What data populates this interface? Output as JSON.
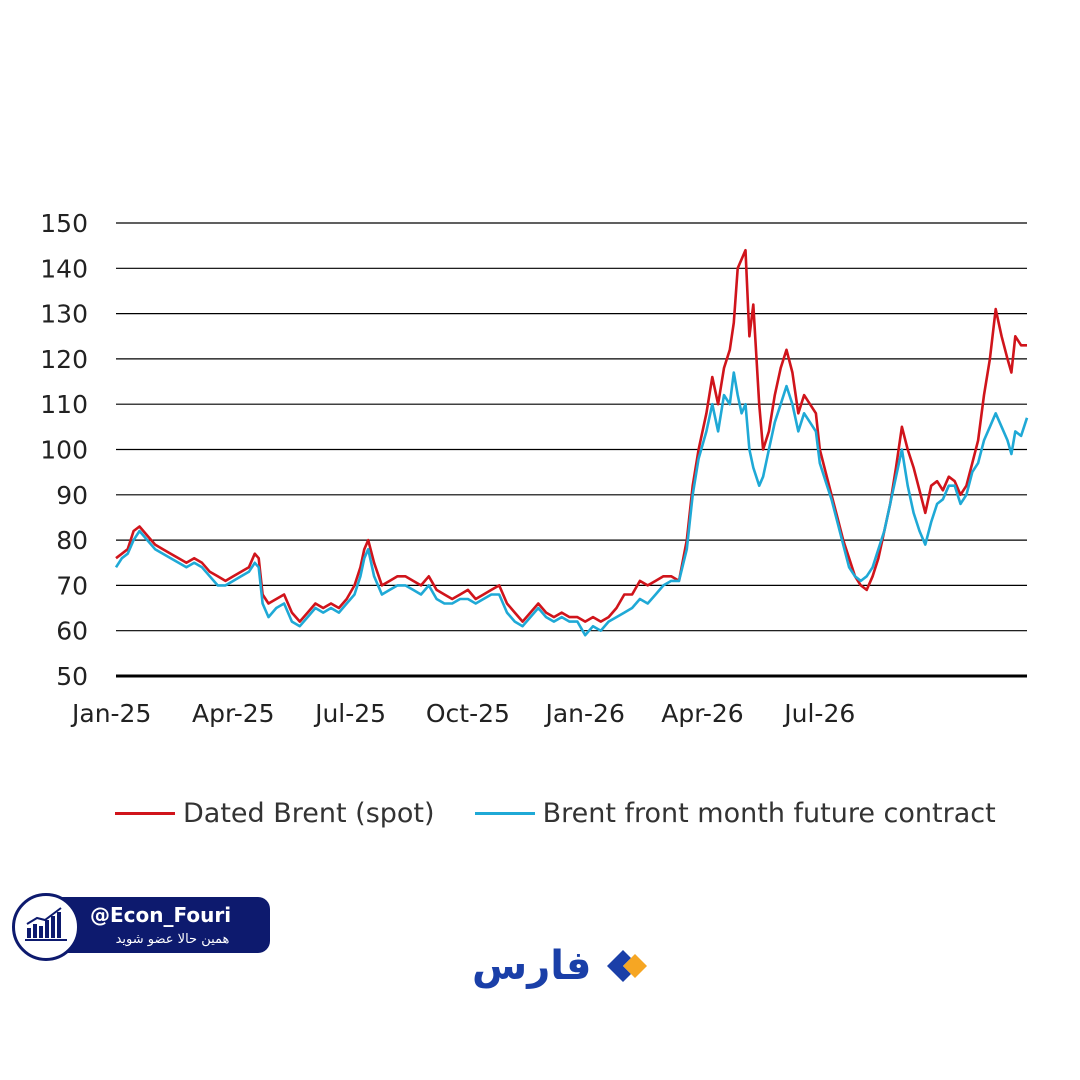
{
  "chart_data": {
    "type": "line",
    "ylim": [
      50,
      150
    ],
    "yticks": [
      50,
      60,
      70,
      80,
      90,
      100,
      110,
      120,
      130,
      140,
      150
    ],
    "xlim": [
      0,
      23.3
    ],
    "xticks": [
      {
        "label": "Jan-25",
        "x": 0
      },
      {
        "label": "Apr-25",
        "x": 3
      },
      {
        "label": "Jul-25",
        "x": 6
      },
      {
        "label": "Oct-25",
        "x": 9
      },
      {
        "label": "Jan-26",
        "x": 12
      },
      {
        "label": "Apr-26",
        "x": 15
      },
      {
        "label": "Jul-26",
        "x": 18
      }
    ],
    "grid": true,
    "legend_position": "bottom",
    "series": [
      {
        "name": "Dated Brent (spot)",
        "color": "#d0141b",
        "points": [
          [
            0.0,
            76
          ],
          [
            0.15,
            77
          ],
          [
            0.3,
            78
          ],
          [
            0.45,
            82
          ],
          [
            0.6,
            83
          ],
          [
            0.8,
            81
          ],
          [
            1.0,
            79
          ],
          [
            1.2,
            78
          ],
          [
            1.4,
            77
          ],
          [
            1.6,
            76
          ],
          [
            1.8,
            75
          ],
          [
            2.0,
            76
          ],
          [
            2.2,
            75
          ],
          [
            2.4,
            73
          ],
          [
            2.6,
            72
          ],
          [
            2.8,
            71
          ],
          [
            3.0,
            72
          ],
          [
            3.2,
            73
          ],
          [
            3.4,
            74
          ],
          [
            3.55,
            77
          ],
          [
            3.65,
            76
          ],
          [
            3.75,
            68
          ],
          [
            3.9,
            66
          ],
          [
            4.1,
            67
          ],
          [
            4.3,
            68
          ],
          [
            4.5,
            64
          ],
          [
            4.7,
            62
          ],
          [
            4.9,
            64
          ],
          [
            5.1,
            66
          ],
          [
            5.3,
            65
          ],
          [
            5.5,
            66
          ],
          [
            5.7,
            65
          ],
          [
            5.9,
            67
          ],
          [
            6.1,
            70
          ],
          [
            6.25,
            74
          ],
          [
            6.35,
            78
          ],
          [
            6.45,
            80
          ],
          [
            6.6,
            75
          ],
          [
            6.8,
            70
          ],
          [
            7.0,
            71
          ],
          [
            7.2,
            72
          ],
          [
            7.4,
            72
          ],
          [
            7.6,
            71
          ],
          [
            7.8,
            70
          ],
          [
            8.0,
            72
          ],
          [
            8.2,
            69
          ],
          [
            8.4,
            68
          ],
          [
            8.6,
            67
          ],
          [
            8.8,
            68
          ],
          [
            9.0,
            69
          ],
          [
            9.2,
            67
          ],
          [
            9.4,
            68
          ],
          [
            9.6,
            69
          ],
          [
            9.8,
            70
          ],
          [
            10.0,
            66
          ],
          [
            10.2,
            64
          ],
          [
            10.4,
            62
          ],
          [
            10.6,
            64
          ],
          [
            10.8,
            66
          ],
          [
            11.0,
            64
          ],
          [
            11.2,
            63
          ],
          [
            11.4,
            64
          ],
          [
            11.6,
            63
          ],
          [
            11.8,
            63
          ],
          [
            12.0,
            62
          ],
          [
            12.2,
            63
          ],
          [
            12.4,
            62
          ],
          [
            12.6,
            63
          ],
          [
            12.8,
            65
          ],
          [
            13.0,
            68
          ],
          [
            13.2,
            68
          ],
          [
            13.4,
            71
          ],
          [
            13.6,
            70
          ],
          [
            13.8,
            71
          ],
          [
            14.0,
            72
          ],
          [
            14.2,
            72
          ],
          [
            14.4,
            71
          ],
          [
            14.6,
            80
          ],
          [
            14.75,
            92
          ],
          [
            14.9,
            100
          ],
          [
            15.1,
            108
          ],
          [
            15.25,
            116
          ],
          [
            15.4,
            110
          ],
          [
            15.55,
            118
          ],
          [
            15.7,
            122
          ],
          [
            15.8,
            128
          ],
          [
            15.9,
            140
          ],
          [
            16.0,
            142
          ],
          [
            16.1,
            144
          ],
          [
            16.2,
            125
          ],
          [
            16.3,
            132
          ],
          [
            16.45,
            110
          ],
          [
            16.55,
            100
          ],
          [
            16.7,
            104
          ],
          [
            16.85,
            112
          ],
          [
            17.0,
            118
          ],
          [
            17.15,
            122
          ],
          [
            17.3,
            117
          ],
          [
            17.45,
            108
          ],
          [
            17.6,
            112
          ],
          [
            17.75,
            110
          ],
          [
            17.9,
            108
          ],
          [
            18.0,
            100
          ],
          [
            18.15,
            95
          ],
          [
            18.3,
            90
          ],
          [
            18.45,
            85
          ],
          [
            18.6,
            80
          ],
          [
            18.75,
            76
          ],
          [
            18.9,
            72
          ],
          [
            19.05,
            70
          ],
          [
            19.2,
            69
          ],
          [
            19.35,
            72
          ],
          [
            19.5,
            76
          ],
          [
            19.65,
            82
          ],
          [
            19.8,
            88
          ],
          [
            19.95,
            96
          ],
          [
            20.1,
            105
          ],
          [
            20.25,
            100
          ],
          [
            20.4,
            96
          ],
          [
            20.55,
            91
          ],
          [
            20.7,
            86
          ],
          [
            20.85,
            92
          ],
          [
            21.0,
            93
          ],
          [
            21.15,
            91
          ],
          [
            21.3,
            94
          ],
          [
            21.45,
            93
          ],
          [
            21.6,
            90
          ],
          [
            21.75,
            92
          ],
          [
            21.9,
            97
          ],
          [
            22.05,
            102
          ],
          [
            22.2,
            112
          ],
          [
            22.35,
            120
          ],
          [
            22.5,
            131
          ],
          [
            22.65,
            125
          ],
          [
            22.8,
            120
          ],
          [
            22.9,
            117
          ],
          [
            23.0,
            125
          ],
          [
            23.15,
            123
          ],
          [
            23.3,
            123
          ]
        ]
      },
      {
        "name": "Brent front month future contract",
        "color": "#1fa9d6",
        "points": [
          [
            0.0,
            74
          ],
          [
            0.15,
            76
          ],
          [
            0.3,
            77
          ],
          [
            0.45,
            80
          ],
          [
            0.6,
            82
          ],
          [
            0.8,
            80
          ],
          [
            1.0,
            78
          ],
          [
            1.2,
            77
          ],
          [
            1.4,
            76
          ],
          [
            1.6,
            75
          ],
          [
            1.8,
            74
          ],
          [
            2.0,
            75
          ],
          [
            2.2,
            74
          ],
          [
            2.4,
            72
          ],
          [
            2.6,
            70
          ],
          [
            2.8,
            70
          ],
          [
            3.0,
            71
          ],
          [
            3.2,
            72
          ],
          [
            3.4,
            73
          ],
          [
            3.55,
            75
          ],
          [
            3.65,
            74
          ],
          [
            3.75,
            66
          ],
          [
            3.9,
            63
          ],
          [
            4.1,
            65
          ],
          [
            4.3,
            66
          ],
          [
            4.5,
            62
          ],
          [
            4.7,
            61
          ],
          [
            4.9,
            63
          ],
          [
            5.1,
            65
          ],
          [
            5.3,
            64
          ],
          [
            5.5,
            65
          ],
          [
            5.7,
            64
          ],
          [
            5.9,
            66
          ],
          [
            6.1,
            68
          ],
          [
            6.25,
            72
          ],
          [
            6.35,
            76
          ],
          [
            6.45,
            78
          ],
          [
            6.6,
            72
          ],
          [
            6.8,
            68
          ],
          [
            7.0,
            69
          ],
          [
            7.2,
            70
          ],
          [
            7.4,
            70
          ],
          [
            7.6,
            69
          ],
          [
            7.8,
            68
          ],
          [
            8.0,
            70
          ],
          [
            8.2,
            67
          ],
          [
            8.4,
            66
          ],
          [
            8.6,
            66
          ],
          [
            8.8,
            67
          ],
          [
            9.0,
            67
          ],
          [
            9.2,
            66
          ],
          [
            9.4,
            67
          ],
          [
            9.6,
            68
          ],
          [
            9.8,
            68
          ],
          [
            10.0,
            64
          ],
          [
            10.2,
            62
          ],
          [
            10.4,
            61
          ],
          [
            10.6,
            63
          ],
          [
            10.8,
            65
          ],
          [
            11.0,
            63
          ],
          [
            11.2,
            62
          ],
          [
            11.4,
            63
          ],
          [
            11.6,
            62
          ],
          [
            11.8,
            62
          ],
          [
            12.0,
            59
          ],
          [
            12.2,
            61
          ],
          [
            12.4,
            60
          ],
          [
            12.6,
            62
          ],
          [
            12.8,
            63
          ],
          [
            13.0,
            64
          ],
          [
            13.2,
            65
          ],
          [
            13.4,
            67
          ],
          [
            13.6,
            66
          ],
          [
            13.8,
            68
          ],
          [
            14.0,
            70
          ],
          [
            14.2,
            71
          ],
          [
            14.4,
            71
          ],
          [
            14.6,
            78
          ],
          [
            14.75,
            90
          ],
          [
            14.9,
            98
          ],
          [
            15.1,
            104
          ],
          [
            15.25,
            110
          ],
          [
            15.4,
            104
          ],
          [
            15.55,
            112
          ],
          [
            15.7,
            110
          ],
          [
            15.8,
            117
          ],
          [
            15.9,
            112
          ],
          [
            16.0,
            108
          ],
          [
            16.1,
            110
          ],
          [
            16.2,
            100
          ],
          [
            16.3,
            96
          ],
          [
            16.45,
            92
          ],
          [
            16.55,
            94
          ],
          [
            16.7,
            100
          ],
          [
            16.85,
            106
          ],
          [
            17.0,
            110
          ],
          [
            17.15,
            114
          ],
          [
            17.3,
            110
          ],
          [
            17.45,
            104
          ],
          [
            17.6,
            108
          ],
          [
            17.75,
            106
          ],
          [
            17.9,
            104
          ],
          [
            18.0,
            97
          ],
          [
            18.15,
            93
          ],
          [
            18.3,
            89
          ],
          [
            18.45,
            84
          ],
          [
            18.6,
            79
          ],
          [
            18.75,
            74
          ],
          [
            18.9,
            72
          ],
          [
            19.05,
            71
          ],
          [
            19.2,
            72
          ],
          [
            19.35,
            74
          ],
          [
            19.5,
            78
          ],
          [
            19.65,
            82
          ],
          [
            19.8,
            88
          ],
          [
            19.95,
            94
          ],
          [
            20.1,
            100
          ],
          [
            20.25,
            92
          ],
          [
            20.4,
            86
          ],
          [
            20.55,
            82
          ],
          [
            20.7,
            79
          ],
          [
            20.85,
            84
          ],
          [
            21.0,
            88
          ],
          [
            21.15,
            89
          ],
          [
            21.3,
            92
          ],
          [
            21.45,
            92
          ],
          [
            21.6,
            88
          ],
          [
            21.75,
            90
          ],
          [
            21.9,
            95
          ],
          [
            22.05,
            97
          ],
          [
            22.2,
            102
          ],
          [
            22.35,
            105
          ],
          [
            22.5,
            108
          ],
          [
            22.65,
            105
          ],
          [
            22.8,
            102
          ],
          [
            22.9,
            99
          ],
          [
            23.0,
            104
          ],
          [
            23.15,
            103
          ],
          [
            23.3,
            107
          ]
        ]
      }
    ]
  },
  "badge": {
    "handle": "@Econ_Fouri",
    "subtitle": "همین حالا عضو شوید"
  },
  "fars": {
    "text": "فارس",
    "colors": {
      "dark": "#1a3fa8",
      "accent": "#f6a623"
    }
  }
}
